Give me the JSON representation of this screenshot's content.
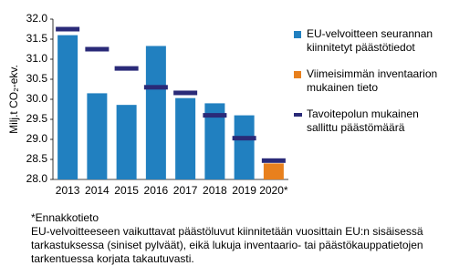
{
  "chart_data": {
    "type": "bar",
    "y_label": "Milj.t CO₂-ekv.",
    "categories": [
      "2013",
      "2014",
      "2015",
      "2016",
      "2017",
      "2018",
      "2019",
      "2020*"
    ],
    "series": [
      {
        "name": "EU-velvoitteen seurannan kiinnitetyt päästötiedot",
        "color": "#2180c0",
        "style": "bar",
        "values": [
          31.6,
          30.15,
          29.86,
          31.33,
          30.03,
          29.9,
          29.6,
          null
        ]
      },
      {
        "name": "Viimeisimmän inventaarion mukainen tieto",
        "color": "#e8801d",
        "style": "bar",
        "values": [
          null,
          null,
          null,
          null,
          null,
          null,
          null,
          28.4
        ]
      },
      {
        "name": "Tavoitepolun mukainen sallittu päästömäärä",
        "color": "#2a2a78",
        "style": "marker",
        "values": [
          31.75,
          31.25,
          30.77,
          30.3,
          30.16,
          29.6,
          29.03,
          28.47
        ]
      }
    ],
    "ylim": [
      28,
      32
    ],
    "yticks": [
      {
        "value": 28,
        "label": "28.0"
      },
      28.5,
      {
        "value": 29,
        "label": "29.0"
      },
      29.5,
      {
        "value": 30,
        "label": "30.0"
      },
      30.5,
      {
        "value": 31,
        "label": "31.0"
      },
      31.5,
      {
        "value": 32,
        "label": "32.0"
      }
    ],
    "legend": "right",
    "notes": [
      "*Ennakkotieto",
      "EU-velvoitteeseen vaikuttavat päästöluvut kiinnitetään vuosittain EU:n sisäisessä",
      "tarkastuksessa (siniset pylväät), eikä lukuja inventaario- tai päästökauppatietojen",
      "tarkentuessa korjata takautuvasti."
    ]
  }
}
